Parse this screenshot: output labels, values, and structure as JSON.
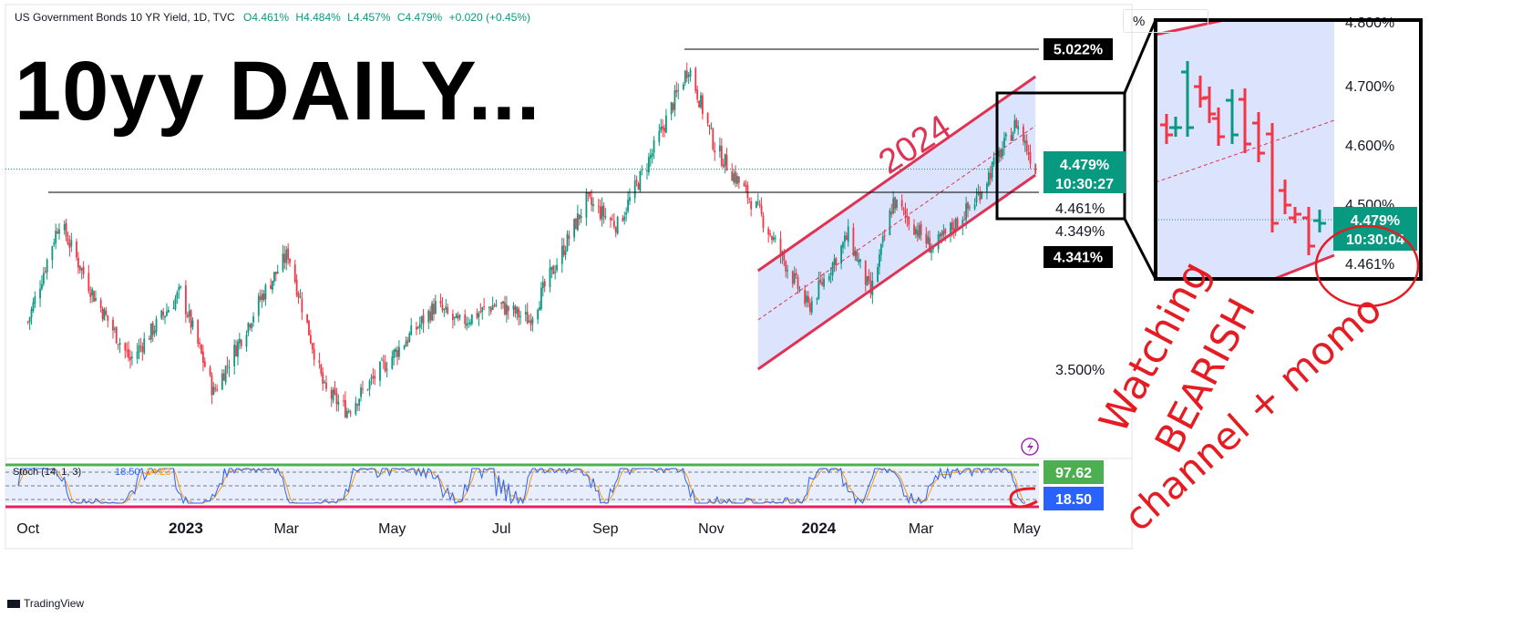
{
  "header": {
    "symbol": "US Government Bonds 10 YR Yield, 1D, TVC",
    "open": "O4.461%",
    "high": "H4.484%",
    "low": "L4.457%",
    "close": "C4.479%",
    "change": "+0.020 (+0.45%)"
  },
  "big_title": "10yy DAILY...",
  "scale_unit": "%",
  "watermark": "TradingView",
  "annotations": {
    "channel_label": "2024",
    "note_line1": "Watching",
    "note_line2": "BEARISH",
    "note_line3": "channel + momo"
  },
  "price_labels": {
    "high_label": "5.022%",
    "last_price": "4.479%",
    "countdown": "10:30:27",
    "open_label": "4.461%",
    "level_349": "4.349%",
    "level_341": "4.341%",
    "level_350": "3.500%"
  },
  "stoch": {
    "legend": "Stoch (14, 1, 3)",
    "k_value": "18.50",
    "d_value": "14.23",
    "badge_high": "97.62",
    "badge_k": "18.50"
  },
  "zoom": {
    "ticks": [
      "4.800%",
      "4.700%",
      "4.600%",
      "4.500%"
    ],
    "last_price": "4.479%",
    "countdown": "10:30:04",
    "open_label": "4.461%"
  },
  "colors": {
    "up": "#089981",
    "down": "#f23645",
    "channel": "#e03253",
    "channel_fill": "#cfd9fc",
    "stoch_k": "#2962ff",
    "stoch_d": "#ff9800",
    "band_top": "#4caf50",
    "band_bottom": "#e91e63",
    "label_dark": "#000000",
    "label_green": "#089981",
    "label_blue": "#2962ff",
    "label_lightgreen": "#4caf50",
    "note_red": "#e51c23"
  },
  "chart_data": {
    "type": "candlestick",
    "x_tick_labels": [
      "Oct",
      "2023",
      "Mar",
      "May",
      "Jul",
      "Sep",
      "Nov",
      "2024",
      "Mar",
      "May"
    ],
    "y_tick_labels": [
      "5.022%",
      "4.479%",
      "4.461%",
      "4.349%",
      "4.341%",
      "3.500%"
    ],
    "series": [
      {
        "type": "close_path",
        "dates": [
          "2022-10-03",
          "2022-10-21",
          "2022-11-10",
          "2022-12-01",
          "2022-12-30",
          "2023-01-18",
          "2023-02-15",
          "2023-03-02",
          "2023-03-23",
          "2023-04-05",
          "2023-04-27",
          "2023-05-26",
          "2023-06-08",
          "2023-06-30",
          "2023-07-19",
          "2023-08-21",
          "2023-09-08",
          "2023-09-28",
          "2023-10-19",
          "2023-11-03",
          "2023-11-29",
          "2023-12-27",
          "2024-01-19",
          "2024-02-01",
          "2024-02-14",
          "2024-03-08",
          "2024-04-01",
          "2024-04-25",
          "2024-05-06"
        ],
        "values": [
          3.72,
          4.22,
          3.85,
          3.53,
          3.87,
          3.37,
          3.85,
          4.06,
          3.38,
          3.28,
          3.51,
          3.8,
          3.71,
          3.81,
          3.73,
          4.32,
          4.2,
          4.56,
          4.99,
          4.59,
          4.26,
          3.79,
          4.15,
          3.86,
          4.32,
          4.08,
          4.32,
          4.71,
          4.48
        ]
      }
    ],
    "ylim": [
      3.2,
      5.12
    ],
    "stoch_overbought": 80,
    "stoch_oversold": 20,
    "last_k": 18.5,
    "last_d": 14.23
  }
}
